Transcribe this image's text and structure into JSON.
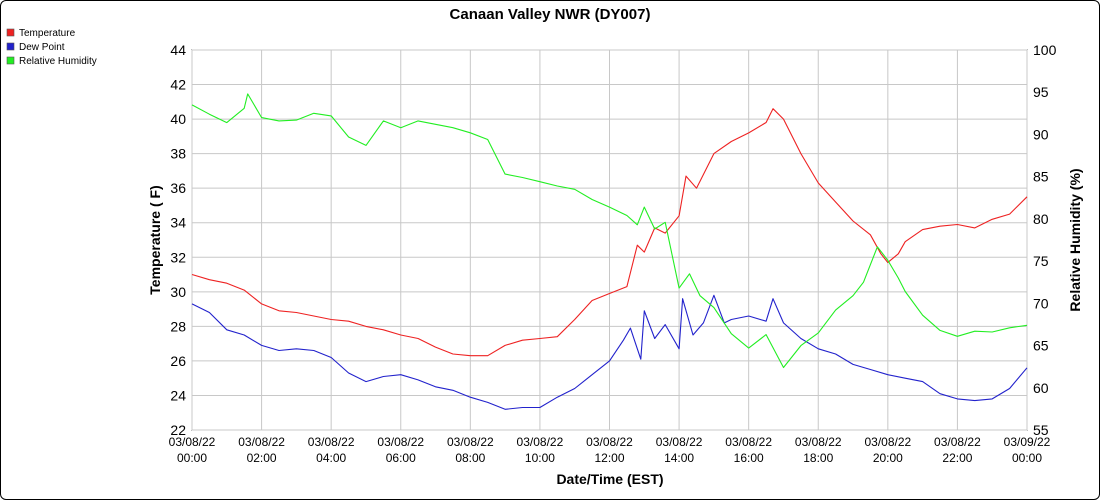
{
  "chart_data": {
    "type": "line",
    "title": "Canaan Valley NWR (DY007)",
    "xlabel": "Date/Time (EST)",
    "ylabel_left": "Temperature ( F)",
    "ylabel_right": "Relative Humidity (%)",
    "ylim_left": [
      22,
      44
    ],
    "ylim_right": [
      55,
      100
    ],
    "xlim_hours": [
      0,
      24
    ],
    "grid": true,
    "legend_position": "top-left-outside",
    "x_ticks": [
      {
        "date": "03/08/22",
        "time": "00:00"
      },
      {
        "date": "03/08/22",
        "time": "02:00"
      },
      {
        "date": "03/08/22",
        "time": "04:00"
      },
      {
        "date": "03/08/22",
        "time": "06:00"
      },
      {
        "date": "03/08/22",
        "time": "08:00"
      },
      {
        "date": "03/08/22",
        "time": "10:00"
      },
      {
        "date": "03/08/22",
        "time": "12:00"
      },
      {
        "date": "03/08/22",
        "time": "14:00"
      },
      {
        "date": "03/08/22",
        "time": "16:00"
      },
      {
        "date": "03/08/22",
        "time": "18:00"
      },
      {
        "date": "03/08/22",
        "time": "20:00"
      },
      {
        "date": "03/08/22",
        "time": "22:00"
      },
      {
        "date": "03/09/22",
        "time": "00:00"
      }
    ],
    "y_ticks_left": [
      "22",
      "24",
      "26",
      "28",
      "30",
      "32",
      "34",
      "36",
      "38",
      "40",
      "42",
      "44"
    ],
    "y_ticks_right": [
      "55",
      "60",
      "65",
      "70",
      "75",
      "80",
      "85",
      "90",
      "95",
      "100"
    ],
    "series": [
      {
        "name": "Temperature",
        "color": "#ee2222",
        "axis": "left",
        "points": [
          [
            0,
            31
          ],
          [
            0.5,
            30.7
          ],
          [
            1,
            30.5
          ],
          [
            1.5,
            30.1
          ],
          [
            2,
            29.3
          ],
          [
            2.5,
            28.9
          ],
          [
            3,
            28.8
          ],
          [
            3.5,
            28.6
          ],
          [
            4,
            28.4
          ],
          [
            4.5,
            28.3
          ],
          [
            5,
            28
          ],
          [
            5.5,
            27.8
          ],
          [
            6,
            27.5
          ],
          [
            6.5,
            27.3
          ],
          [
            7,
            26.8
          ],
          [
            7.5,
            26.4
          ],
          [
            8,
            26.3
          ],
          [
            8.5,
            26.3
          ],
          [
            9,
            26.9
          ],
          [
            9.5,
            27.2
          ],
          [
            10,
            27.3
          ],
          [
            10.5,
            27.4
          ],
          [
            11,
            28.4
          ],
          [
            11.5,
            29.5
          ],
          [
            12,
            29.9
          ],
          [
            12.5,
            30.3
          ],
          [
            12.8,
            32.7
          ],
          [
            13,
            32.3
          ],
          [
            13.3,
            33.7
          ],
          [
            13.6,
            33.4
          ],
          [
            14,
            34.4
          ],
          [
            14.2,
            36.7
          ],
          [
            14.5,
            36
          ],
          [
            15,
            38
          ],
          [
            15.5,
            38.7
          ],
          [
            16,
            39.2
          ],
          [
            16.5,
            39.8
          ],
          [
            16.7,
            40.6
          ],
          [
            17,
            40
          ],
          [
            17.5,
            38
          ],
          [
            18,
            36.3
          ],
          [
            18.5,
            35.2
          ],
          [
            19,
            34.1
          ],
          [
            19.5,
            33.3
          ],
          [
            19.8,
            32.2
          ],
          [
            20,
            31.7
          ],
          [
            20.3,
            32.2
          ],
          [
            20.5,
            32.9
          ],
          [
            21,
            33.6
          ],
          [
            21.5,
            33.8
          ],
          [
            22,
            33.9
          ],
          [
            22.5,
            33.7
          ],
          [
            23,
            34.2
          ],
          [
            23.5,
            34.5
          ],
          [
            24,
            35.5
          ]
        ]
      },
      {
        "name": "Dew Point",
        "color": "#2222cc",
        "axis": "left",
        "points": [
          [
            0,
            29.3
          ],
          [
            0.5,
            28.8
          ],
          [
            1,
            27.8
          ],
          [
            1.5,
            27.5
          ],
          [
            2,
            26.9
          ],
          [
            2.5,
            26.6
          ],
          [
            3,
            26.7
          ],
          [
            3.5,
            26.6
          ],
          [
            4,
            26.2
          ],
          [
            4.5,
            25.3
          ],
          [
            5,
            24.8
          ],
          [
            5.5,
            25.1
          ],
          [
            6,
            25.2
          ],
          [
            6.5,
            24.9
          ],
          [
            7,
            24.5
          ],
          [
            7.5,
            24.3
          ],
          [
            8,
            23.9
          ],
          [
            8.5,
            23.6
          ],
          [
            9,
            23.2
          ],
          [
            9.5,
            23.3
          ],
          [
            10,
            23.3
          ],
          [
            10.5,
            23.9
          ],
          [
            11,
            24.4
          ],
          [
            11.5,
            25.2
          ],
          [
            12,
            26
          ],
          [
            12.4,
            27.2
          ],
          [
            12.6,
            27.9
          ],
          [
            12.9,
            26.1
          ],
          [
            13,
            28.9
          ],
          [
            13.3,
            27.3
          ],
          [
            13.6,
            28.1
          ],
          [
            14,
            26.7
          ],
          [
            14.1,
            29.6
          ],
          [
            14.4,
            27.5
          ],
          [
            14.7,
            28.2
          ],
          [
            15,
            29.8
          ],
          [
            15.3,
            28.2
          ],
          [
            15.5,
            28.4
          ],
          [
            16,
            28.6
          ],
          [
            16.5,
            28.3
          ],
          [
            16.7,
            29.6
          ],
          [
            17,
            28.2
          ],
          [
            17.5,
            27.3
          ],
          [
            18,
            26.7
          ],
          [
            18.5,
            26.4
          ],
          [
            19,
            25.8
          ],
          [
            19.5,
            25.5
          ],
          [
            20,
            25.2
          ],
          [
            20.5,
            25
          ],
          [
            21,
            24.8
          ],
          [
            21.5,
            24.1
          ],
          [
            22,
            23.8
          ],
          [
            22.5,
            23.7
          ],
          [
            23,
            23.8
          ],
          [
            23.5,
            24.4
          ],
          [
            24,
            25.6
          ]
        ]
      },
      {
        "name": "Relative Humidity",
        "color": "#22ee22",
        "axis": "right",
        "points": [
          [
            0,
            93.5
          ],
          [
            0.5,
            92.4
          ],
          [
            1,
            91.4
          ],
          [
            1.5,
            93.1
          ],
          [
            1.6,
            94.8
          ],
          [
            2,
            92
          ],
          [
            2.5,
            91.6
          ],
          [
            3,
            91.7
          ],
          [
            3.5,
            92.5
          ],
          [
            4,
            92.2
          ],
          [
            4.5,
            89.7
          ],
          [
            5,
            88.7
          ],
          [
            5.5,
            91.6
          ],
          [
            6,
            90.8
          ],
          [
            6.5,
            91.6
          ],
          [
            7,
            91.2
          ],
          [
            7.5,
            90.8
          ],
          [
            8,
            90.2
          ],
          [
            8.5,
            89.4
          ],
          [
            9,
            85.3
          ],
          [
            9.5,
            84.9
          ],
          [
            10,
            84.4
          ],
          [
            10.5,
            83.9
          ],
          [
            11,
            83.5
          ],
          [
            11.5,
            82.3
          ],
          [
            12,
            81.4
          ],
          [
            12.5,
            80.4
          ],
          [
            12.8,
            79.3
          ],
          [
            13,
            81.4
          ],
          [
            13.3,
            78.8
          ],
          [
            13.6,
            79.6
          ],
          [
            14,
            71.8
          ],
          [
            14.3,
            73.5
          ],
          [
            14.6,
            70.9
          ],
          [
            15,
            69.5
          ],
          [
            15.5,
            66.4
          ],
          [
            16,
            64.7
          ],
          [
            16.5,
            66.3
          ],
          [
            17,
            62.4
          ],
          [
            17.5,
            65
          ],
          [
            18,
            66.5
          ],
          [
            18.5,
            69.2
          ],
          [
            19,
            70.9
          ],
          [
            19.3,
            72.5
          ],
          [
            19.7,
            76.7
          ],
          [
            20,
            75.1
          ],
          [
            20.3,
            73
          ],
          [
            20.5,
            71.4
          ],
          [
            21,
            68.6
          ],
          [
            21.5,
            66.8
          ],
          [
            22,
            66.1
          ],
          [
            22.5,
            66.7
          ],
          [
            23,
            66.6
          ],
          [
            23.5,
            67.1
          ],
          [
            24,
            67.4
          ]
        ]
      }
    ]
  }
}
